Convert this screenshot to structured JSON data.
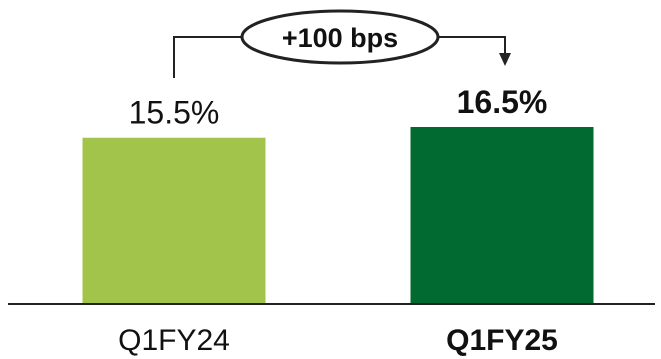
{
  "chart_data": {
    "type": "bar",
    "categories": [
      "Q1FY24",
      "Q1FY25"
    ],
    "values": [
      15.5,
      16.5
    ],
    "value_labels": [
      "15.5%",
      "16.5%"
    ],
    "emphasized_index": 1,
    "colors": [
      "#A2C44A",
      "#006A30"
    ],
    "ylim": [
      0,
      16.5
    ],
    "grid": false,
    "annotation": {
      "text": "+100 bps",
      "from_index": 0,
      "to_index": 1
    },
    "title": "",
    "xlabel": "",
    "ylabel": ""
  }
}
